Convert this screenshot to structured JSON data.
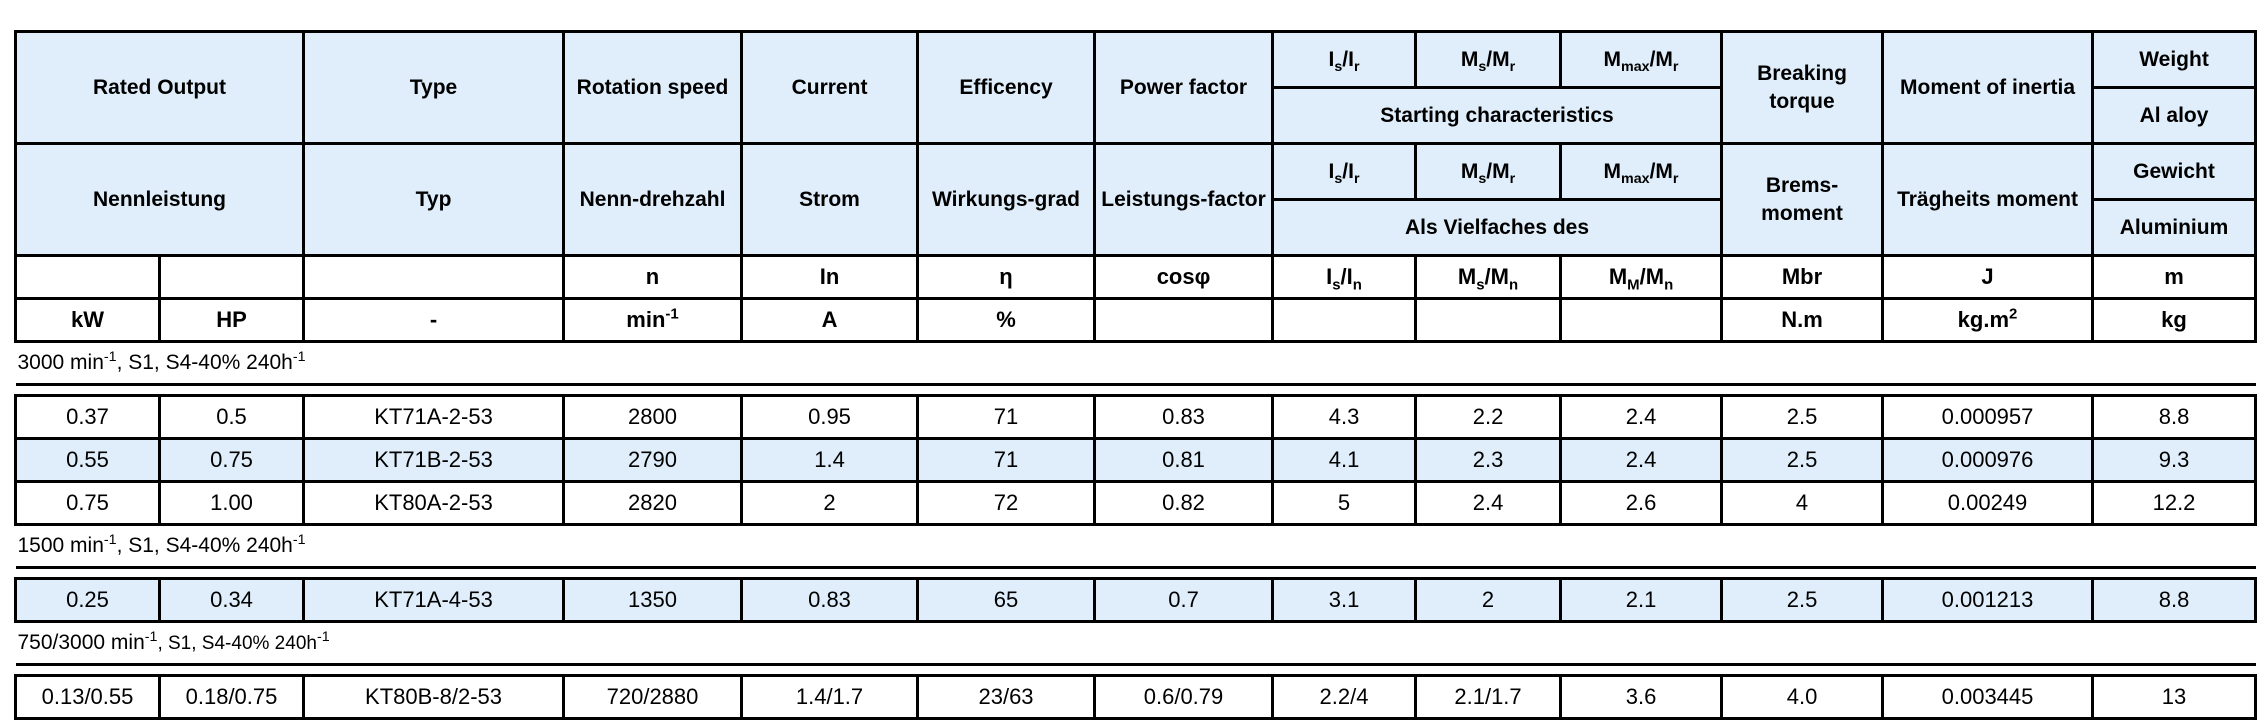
{
  "header_en": {
    "rated_output": "Rated Output",
    "type": "Type",
    "rotation_speed": "Rotation speed",
    "current": "Current",
    "efficiency": "Efficency",
    "power_factor": "Power factor",
    "is_ir_b": "I",
    "is_ir_s1": "s",
    "is_ir_m": "/I",
    "is_ir_s2": "r",
    "ms_mr_b": "M",
    "ms_mr_s1": "s",
    "ms_mr_m": "/M",
    "ms_mr_s2": "r",
    "mmax_mr_b": "M",
    "mmax_mr_s1": "max",
    "mmax_mr_m": "/M",
    "mmax_mr_s2": "r",
    "starting": "Starting characteristics",
    "breaking": "Breaking torque",
    "inertia": "Moment of inertia",
    "weight": "Weight",
    "weight_sub": "Al aloy"
  },
  "header_de": {
    "rated_output": "Nennleistung",
    "type": "Typ",
    "rotation_speed": "Nenn-drehzahl",
    "current": "Strom",
    "efficiency": "Wirkungs-grad",
    "power_factor": "Leistungs-factor",
    "is_ir_b": "I",
    "is_ir_s1": "s",
    "is_ir_m": "/I",
    "is_ir_s2": "r",
    "ms_mr_b": "M",
    "ms_mr_s1": "s",
    "ms_mr_m": "/M",
    "ms_mr_s2": "r",
    "mmax_mr_b": "M",
    "mmax_mr_s1": "max",
    "mmax_mr_m": "/M",
    "mmax_mr_s2": "r",
    "starting": "Als Vielfaches des",
    "breaking": "Brems-moment",
    "inertia": "Trägheits moment",
    "weight": "Gewicht",
    "weight_sub": "Aluminium"
  },
  "symbols": {
    "n": "n",
    "in": "In",
    "eta": "η",
    "cos": "cosφ",
    "is_in_b": "I",
    "is_in_s1": "s",
    "is_in_m": "/I",
    "is_in_s2": "n",
    "ms_mn_b": "M",
    "ms_mn_s1": "s",
    "ms_mn_m": "/M",
    "ms_mn_s2": "n",
    "mm_mn_b": "M",
    "mm_mn_s1": "M",
    "mm_mn_m": "/M",
    "mm_mn_s2": "n",
    "mbr": "Mbr",
    "j": "J",
    "m": "m"
  },
  "units": {
    "kw": "kW",
    "hp": "HP",
    "type": "-",
    "min": "min",
    "min_sup": "-1",
    "a": "A",
    "pct": "%",
    "nm": "N.m",
    "kgm": "kg.m",
    "kgm_sup": "2",
    "kg": "kg"
  },
  "sections": [
    {
      "title_a": "3000 min",
      "title_sup": "-1",
      "title_b": ", S1, S4-40% 240h",
      "title_sup2": "-1",
      "rows": [
        [
          "0.37",
          "0.5",
          "KT71A-2-53",
          "2800",
          "0.95",
          "71",
          "0.83",
          "4.3",
          "2.2",
          "2.4",
          "2.5",
          "0.000957",
          "8.8"
        ],
        [
          "0.55",
          "0.75",
          "KT71B-2-53",
          "2790",
          "1.4",
          "71",
          "0.81",
          "4.1",
          "2.3",
          "2.4",
          "2.5",
          "0.000976",
          "9.3"
        ],
        [
          "0.75",
          "1.00",
          "KT80A-2-53",
          "2820",
          "2",
          "72",
          "0.82",
          "5",
          "2.4",
          "2.6",
          "4",
          "0.00249",
          "12.2"
        ]
      ]
    },
    {
      "title_a": "1500 min",
      "title_sup": "-1",
      "title_b": ", S1, S4-40% 240h",
      "title_sup2": "-1",
      "rows": [
        [
          "0.25",
          "0.34",
          "KT71A-4-53",
          "1350",
          "0.83",
          "65",
          "0.7",
          "3.1",
          "2",
          "2.1",
          "2.5",
          "0.001213",
          "8.8"
        ]
      ]
    },
    {
      "title_a": "750/3000 min",
      "title_sup": "-1",
      "title_b": ", S1, S4-40% 240h",
      "title_sup2": "-1",
      "rows": [
        [
          "0.13/0.55",
          "0.18/0.75",
          "KT80B-8/2-53",
          "720/2880",
          "1.4/1.7",
          "23/63",
          "0.6/0.79",
          "2.2/4",
          "2.1/1.7",
          "3.6",
          "4.0",
          "0.003445",
          "13"
        ]
      ]
    }
  ]
}
